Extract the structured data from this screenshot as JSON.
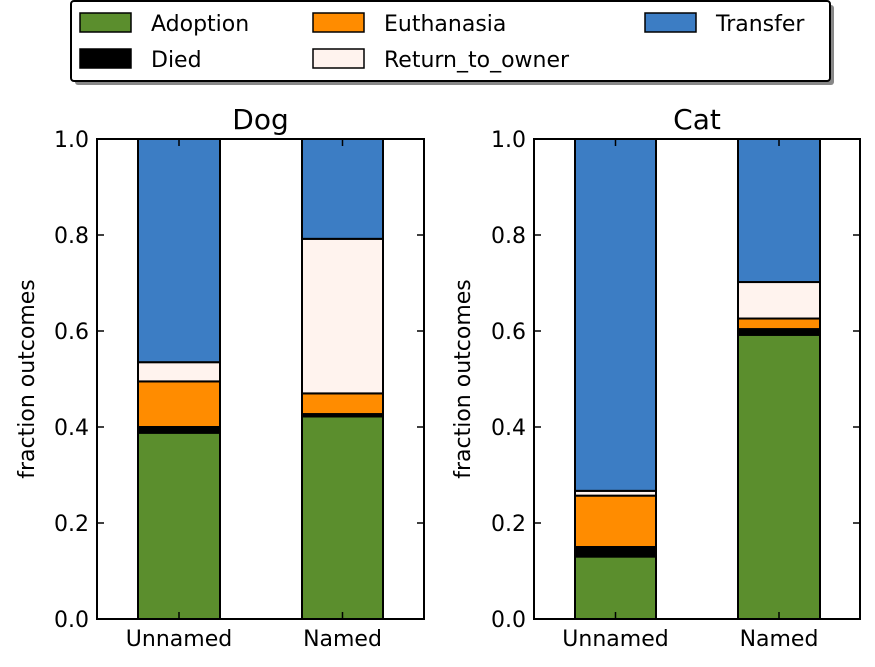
{
  "chart_data": {
    "type": "bar",
    "stacked": true,
    "legend": {
      "placement": "top-center",
      "entries": [
        {
          "name": "Adoption",
          "color": "#5b8e2d"
        },
        {
          "name": "Died",
          "color": "#000000"
        },
        {
          "name": "Euthanasia",
          "color": "#ff8c00"
        },
        {
          "name": "Return_to_owner",
          "color": "#fff3ee"
        },
        {
          "name": "Transfer",
          "color": "#3c7dc4"
        }
      ]
    },
    "ylabel": "fraction outcomes",
    "ylim": [
      0,
      1.0
    ],
    "yticks": [
      "0.0",
      "0.2",
      "0.4",
      "0.6",
      "0.8",
      "1.0"
    ],
    "panels": [
      {
        "title": "Dog",
        "categories": [
          "Unnamed",
          "Named"
        ],
        "series": [
          {
            "name": "Adoption",
            "values": [
              0.388,
              0.422
            ]
          },
          {
            "name": "Died",
            "values": [
              0.012,
              0.005
            ]
          },
          {
            "name": "Euthanasia",
            "values": [
              0.095,
              0.043
            ]
          },
          {
            "name": "Return_to_owner",
            "values": [
              0.04,
              0.322
            ]
          },
          {
            "name": "Transfer",
            "values": [
              0.465,
              0.208
            ]
          }
        ]
      },
      {
        "title": "Cat",
        "categories": [
          "Unnamed",
          "Named"
        ],
        "series": [
          {
            "name": "Adoption",
            "values": [
              0.13,
              0.592
            ]
          },
          {
            "name": "Died",
            "values": [
              0.02,
              0.012
            ]
          },
          {
            "name": "Euthanasia",
            "values": [
              0.107,
              0.022
            ]
          },
          {
            "name": "Return_to_owner",
            "values": [
              0.01,
              0.076
            ]
          },
          {
            "name": "Transfer",
            "values": [
              0.733,
              0.298
            ]
          }
        ]
      }
    ]
  }
}
